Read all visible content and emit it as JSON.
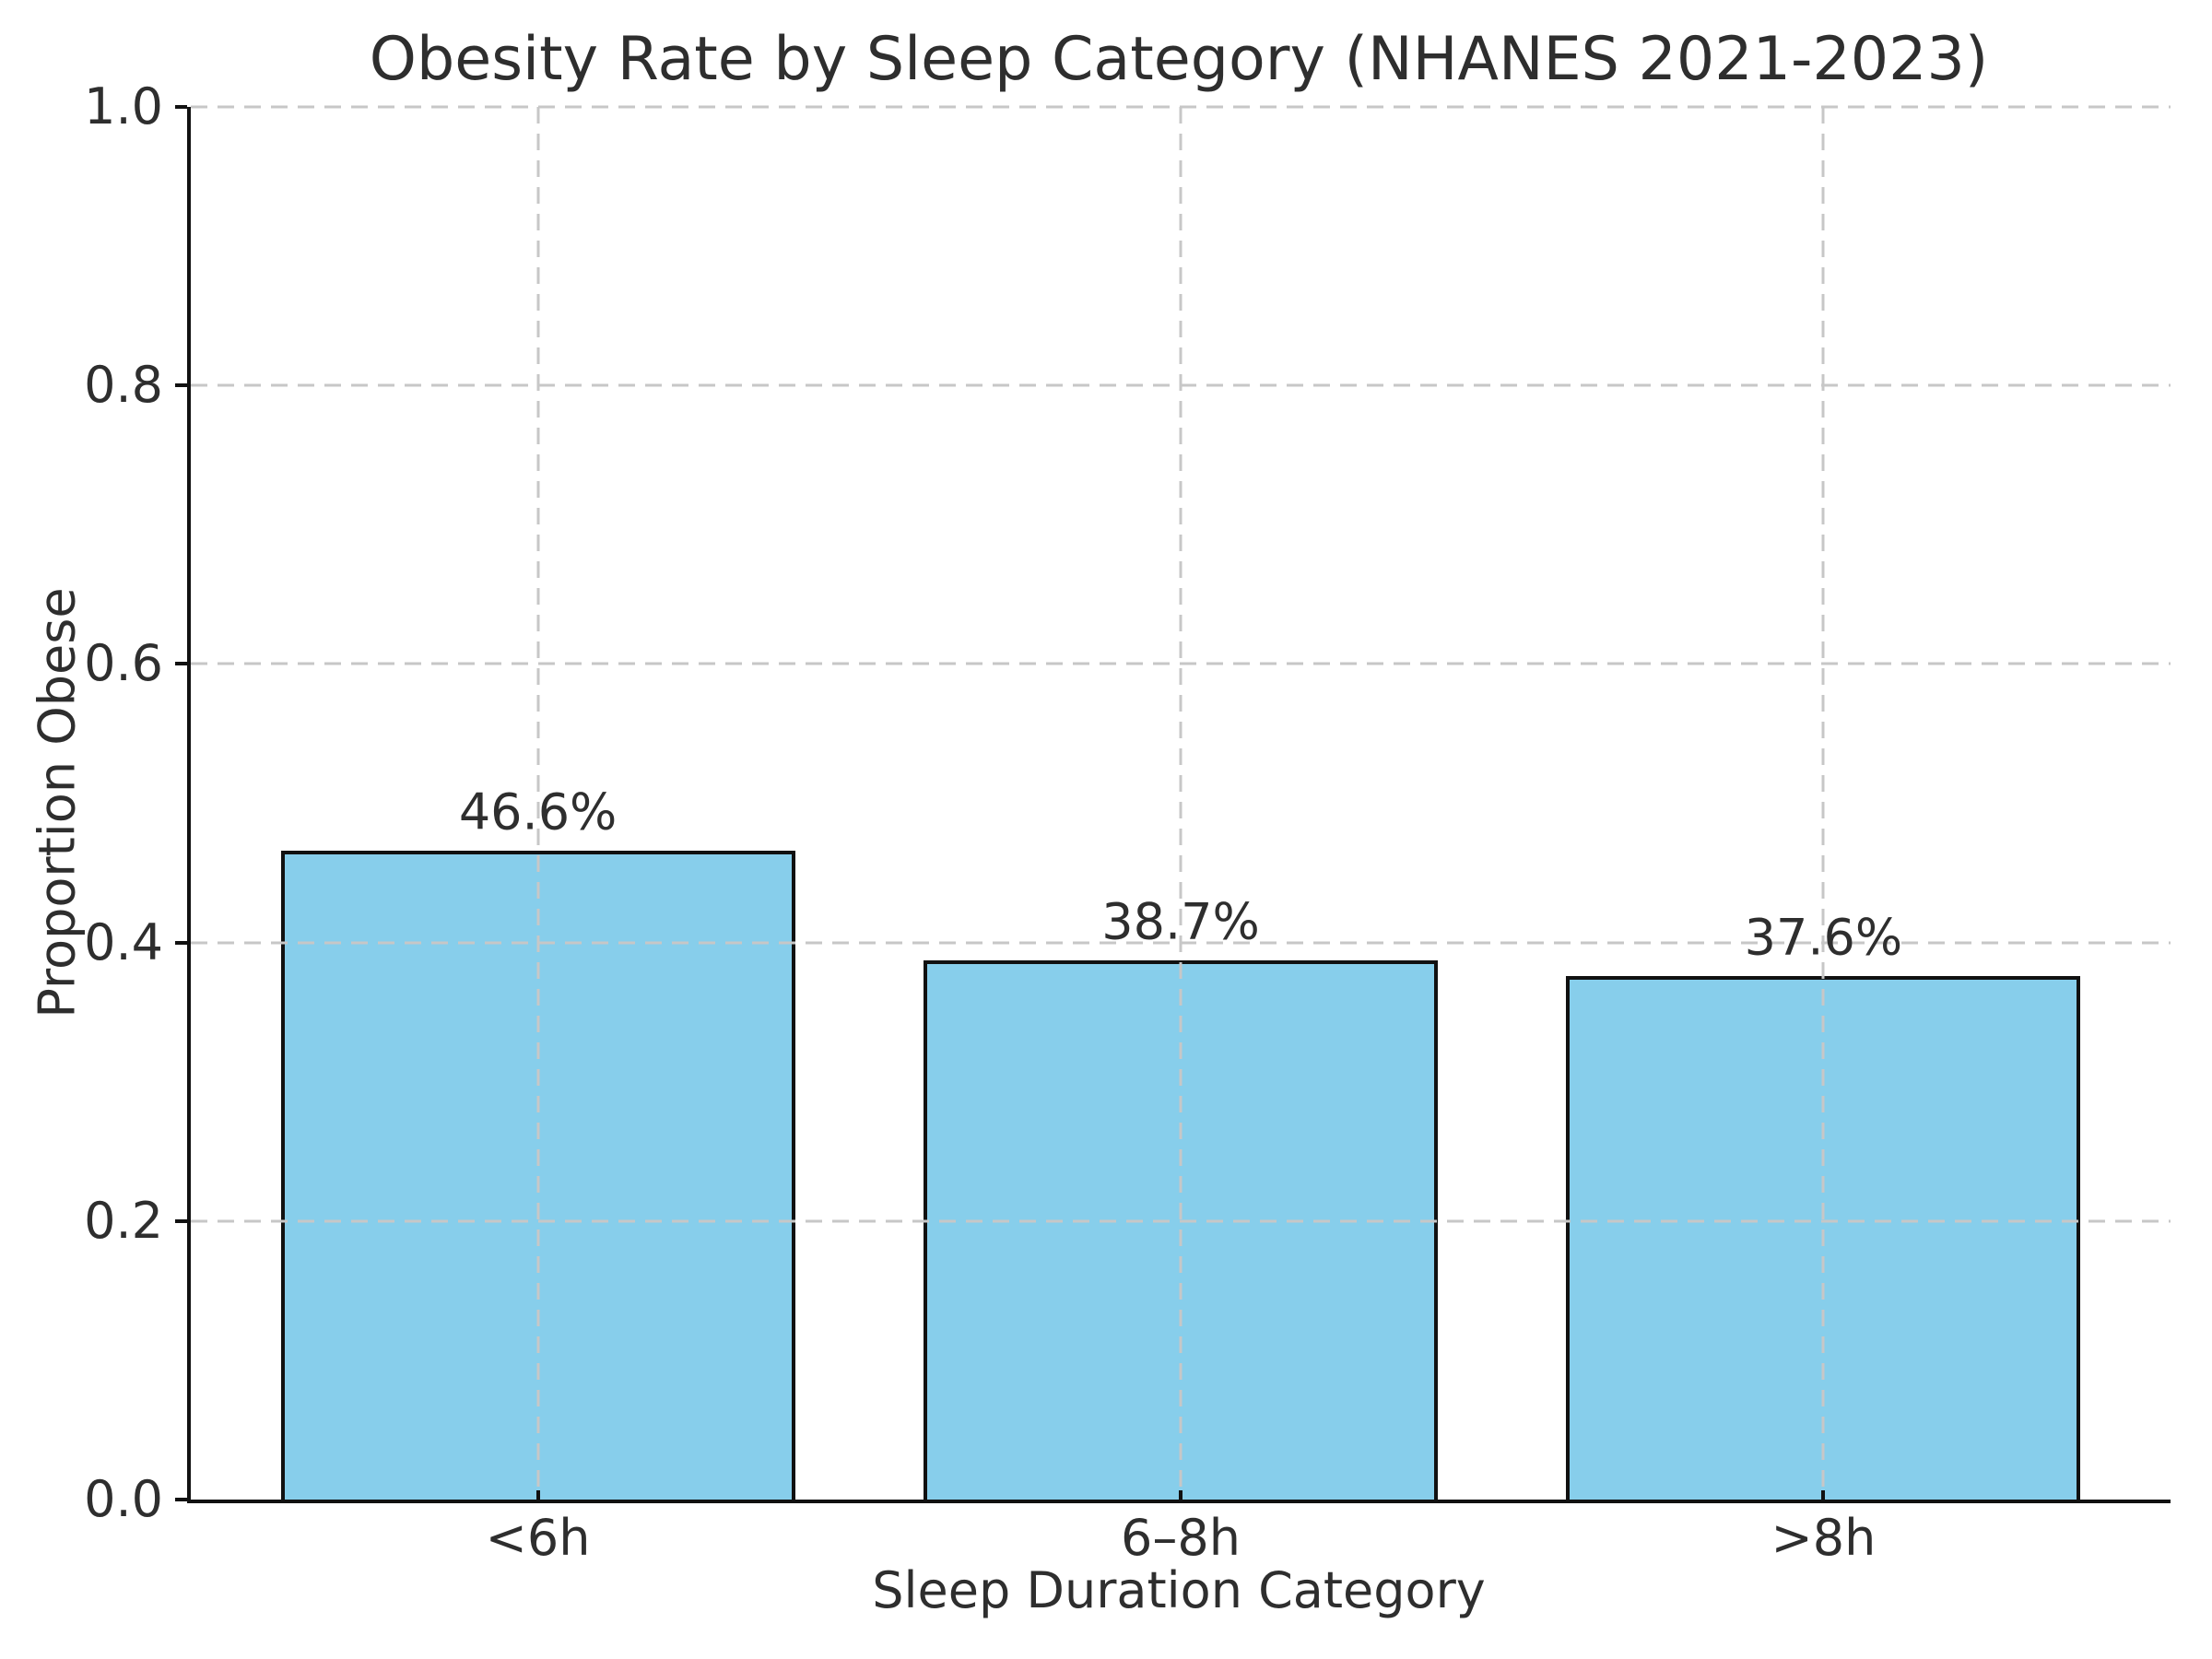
{
  "chart_data": {
    "type": "bar",
    "title": "Obesity Rate by Sleep Category (NHANES 2021-2023)",
    "xlabel": "Sleep Duration Category",
    "ylabel": "Proportion Obese",
    "categories": [
      "<6h",
      "6–8h",
      ">8h"
    ],
    "values": [
      0.466,
      0.387,
      0.376
    ],
    "bar_labels": [
      "46.6%",
      "38.7%",
      "37.6%"
    ],
    "ylim": [
      0.0,
      1.0
    ],
    "yticks": [
      0.0,
      0.2,
      0.4,
      0.6,
      0.8,
      1.0
    ],
    "ytick_labels": [
      "0.0",
      "0.2",
      "0.4",
      "0.6",
      "0.8",
      "1.0"
    ],
    "bar_width_fraction": 0.8,
    "grid": {
      "visible": true,
      "line_style": "dashed",
      "axes": "both",
      "above_bars": true
    },
    "legend": null,
    "colors": {
      "bar_fill": "#87CEEB",
      "bar_edge": "#111111",
      "grid_line": "#c7c7c7",
      "spine": "#111111",
      "text": "#2e2e2e",
      "background": "#ffffff"
    }
  }
}
